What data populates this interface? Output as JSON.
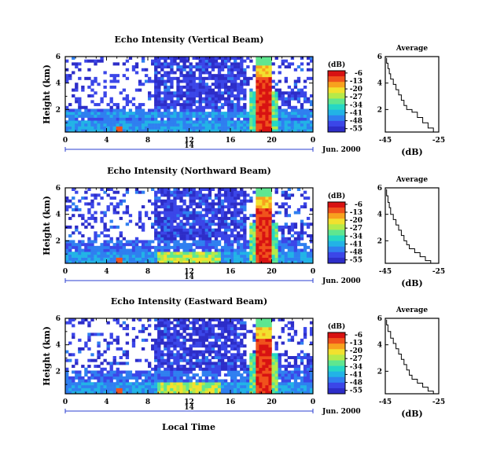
{
  "colors": {
    "scale": [
      "#2d2dc8",
      "#3b46e8",
      "#2f7ff0",
      "#22b3e6",
      "#26d7c4",
      "#5fe690",
      "#b5ea4a",
      "#f2e12e",
      "#f8a11e",
      "#f0521c",
      "#d81212"
    ],
    "missing": "#ffffff"
  },
  "figure": {
    "xlabel": "Local Time",
    "date_label": "Jun. 2000",
    "day_label": "14",
    "ylabel": "Height (km)",
    "colorbar_unit": "(dB)",
    "avg_title": "Average",
    "avg_xlabel": "(dB)"
  },
  "chart_data": [
    {
      "type": "heatmap",
      "title": "Echo Intensity (Vertical Beam)",
      "beam": "vertical",
      "x": {
        "ticks": [
          "0",
          "4",
          "8",
          "12",
          "16",
          "20",
          "0"
        ],
        "range_hours": [
          0,
          24
        ]
      },
      "y": {
        "ticks": [
          "2",
          "4",
          "6"
        ],
        "range_km": [
          0.3,
          6
        ]
      },
      "colorbar": {
        "label": "(dB)",
        "ticks": [
          "-6",
          "-13",
          "-20",
          "-27",
          "-34",
          "-41",
          "-48",
          "-55"
        ],
        "range": [
          -58,
          -4
        ]
      },
      "average_profile": {
        "type": "line",
        "title": "Average",
        "xlabel": "(dB)",
        "xticks": [
          "-45",
          "-25"
        ],
        "xlim": [
          -45,
          -25
        ],
        "yticks": [
          "2",
          "4",
          "6"
        ],
        "ylim": [
          0.3,
          6
        ],
        "x": [
          -26,
          -27,
          -29,
          -31,
          -33,
          -35,
          -37,
          -38,
          -39,
          -40,
          -41,
          -42,
          -43,
          -43.5,
          -44,
          -44.5
        ],
        "y": [
          0.3,
          0.6,
          1.0,
          1.4,
          1.8,
          2.0,
          2.3,
          2.7,
          3.1,
          3.5,
          3.9,
          4.3,
          4.7,
          5.1,
          5.5,
          5.9
        ]
      }
    },
    {
      "type": "heatmap",
      "title": "Echo Intensity (Northward Beam)",
      "beam": "northward",
      "x": {
        "ticks": [
          "0",
          "4",
          "8",
          "12",
          "16",
          "20",
          "0"
        ],
        "range_hours": [
          0,
          24
        ]
      },
      "y": {
        "ticks": [
          "2",
          "4",
          "6"
        ],
        "range_km": [
          0.3,
          6
        ]
      },
      "colorbar": {
        "label": "(dB)",
        "ticks": [
          "-6",
          "-13",
          "-20",
          "-27",
          "-34",
          "-41",
          "-48",
          "-55"
        ],
        "range": [
          -58,
          -4
        ]
      },
      "average_profile": {
        "type": "line",
        "title": "Average",
        "xlabel": "(dB)",
        "xticks": [
          "-45",
          "-25"
        ],
        "xlim": [
          -45,
          -25
        ],
        "yticks": [
          "2",
          "4",
          "6"
        ],
        "ylim": [
          0.3,
          6
        ],
        "x": [
          -26,
          -28,
          -30,
          -32,
          -34,
          -36,
          -37,
          -38,
          -39,
          -40,
          -41,
          -42,
          -43,
          -43.5,
          -44,
          -44.5
        ],
        "y": [
          0.3,
          0.5,
          0.8,
          1.1,
          1.4,
          1.7,
          2.0,
          2.4,
          2.8,
          3.2,
          3.6,
          4.0,
          4.5,
          4.9,
          5.4,
          5.9
        ]
      }
    },
    {
      "type": "heatmap",
      "title": "Echo Intensity (Eastward Beam)",
      "beam": "eastward",
      "x": {
        "ticks": [
          "0",
          "4",
          "8",
          "12",
          "16",
          "20",
          "0"
        ],
        "range_hours": [
          0,
          24
        ]
      },
      "y": {
        "ticks": [
          "2",
          "4",
          "6"
        ],
        "range_km": [
          0.3,
          6
        ]
      },
      "colorbar": {
        "label": "(dB)",
        "ticks": [
          "-6",
          "-13",
          "-20",
          "-27",
          "-34",
          "-41",
          "-48",
          "-55"
        ],
        "range": [
          -58,
          -4
        ]
      },
      "average_profile": {
        "type": "line",
        "title": "Average",
        "xlabel": "(dB)",
        "xticks": [
          "-45",
          "-25"
        ],
        "xlim": [
          -45,
          -25
        ],
        "yticks": [
          "2",
          "4",
          "6"
        ],
        "ylim": [
          0.3,
          6
        ],
        "x": [
          -25,
          -27,
          -29,
          -31,
          -33,
          -35,
          -36,
          -37,
          -38,
          -39,
          -40,
          -41,
          -42,
          -43,
          -44,
          -44.5
        ],
        "y": [
          0.3,
          0.5,
          0.8,
          1.1,
          1.4,
          1.7,
          2.1,
          2.5,
          2.9,
          3.3,
          3.7,
          4.1,
          4.5,
          5.0,
          5.5,
          5.9
        ]
      }
    }
  ]
}
